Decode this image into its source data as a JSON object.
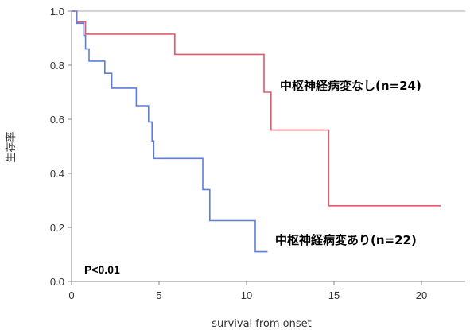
{
  "chart_data": {
    "type": "line",
    "subtype": "kaplan-meier-step",
    "xlabel": "survival from onset",
    "ylabel": "生存率",
    "xlim": [
      0,
      22.5
    ],
    "ylim": [
      0,
      1.0
    ],
    "xticks": [
      0,
      5,
      10,
      15,
      20
    ],
    "yticks": [
      0.0,
      0.2,
      0.4,
      0.6,
      0.8,
      1.0
    ],
    "x_tick_labels": [
      "0",
      "5",
      "10",
      "15",
      "20"
    ],
    "y_tick_labels": [
      "0.0",
      "0.2",
      "0.4",
      "0.6",
      "0.8",
      "1.0"
    ],
    "grid": false,
    "annotation": "P<0.01",
    "series": [
      {
        "name": "中枢神経病変なし(n=24)",
        "color": "#e05a6a",
        "points": [
          [
            0,
            1.0
          ],
          [
            0.3,
            1.0
          ],
          [
            0.3,
            0.96
          ],
          [
            0.8,
            0.96
          ],
          [
            0.8,
            0.915
          ],
          [
            5.9,
            0.915
          ],
          [
            5.9,
            0.84
          ],
          [
            11.0,
            0.84
          ],
          [
            11.0,
            0.7
          ],
          [
            11.4,
            0.7
          ],
          [
            11.4,
            0.56
          ],
          [
            14.7,
            0.56
          ],
          [
            14.7,
            0.28
          ],
          [
            21.1,
            0.28
          ]
        ]
      },
      {
        "name": "中枢神経病変あり(n=22)",
        "color": "#5b7fd6",
        "points": [
          [
            0,
            1.0
          ],
          [
            0.3,
            1.0
          ],
          [
            0.3,
            0.955
          ],
          [
            0.7,
            0.955
          ],
          [
            0.7,
            0.91
          ],
          [
            0.8,
            0.91
          ],
          [
            0.8,
            0.86
          ],
          [
            1.0,
            0.86
          ],
          [
            1.0,
            0.815
          ],
          [
            1.9,
            0.815
          ],
          [
            1.9,
            0.77
          ],
          [
            2.3,
            0.77
          ],
          [
            2.3,
            0.715
          ],
          [
            3.7,
            0.715
          ],
          [
            3.7,
            0.65
          ],
          [
            4.4,
            0.65
          ],
          [
            4.4,
            0.59
          ],
          [
            4.6,
            0.59
          ],
          [
            4.6,
            0.52
          ],
          [
            4.7,
            0.52
          ],
          [
            4.7,
            0.455
          ],
          [
            7.5,
            0.455
          ],
          [
            7.5,
            0.34
          ],
          [
            7.9,
            0.34
          ],
          [
            7.9,
            0.225
          ],
          [
            10.5,
            0.225
          ],
          [
            10.5,
            0.11
          ],
          [
            11.2,
            0.11
          ]
        ]
      }
    ]
  }
}
